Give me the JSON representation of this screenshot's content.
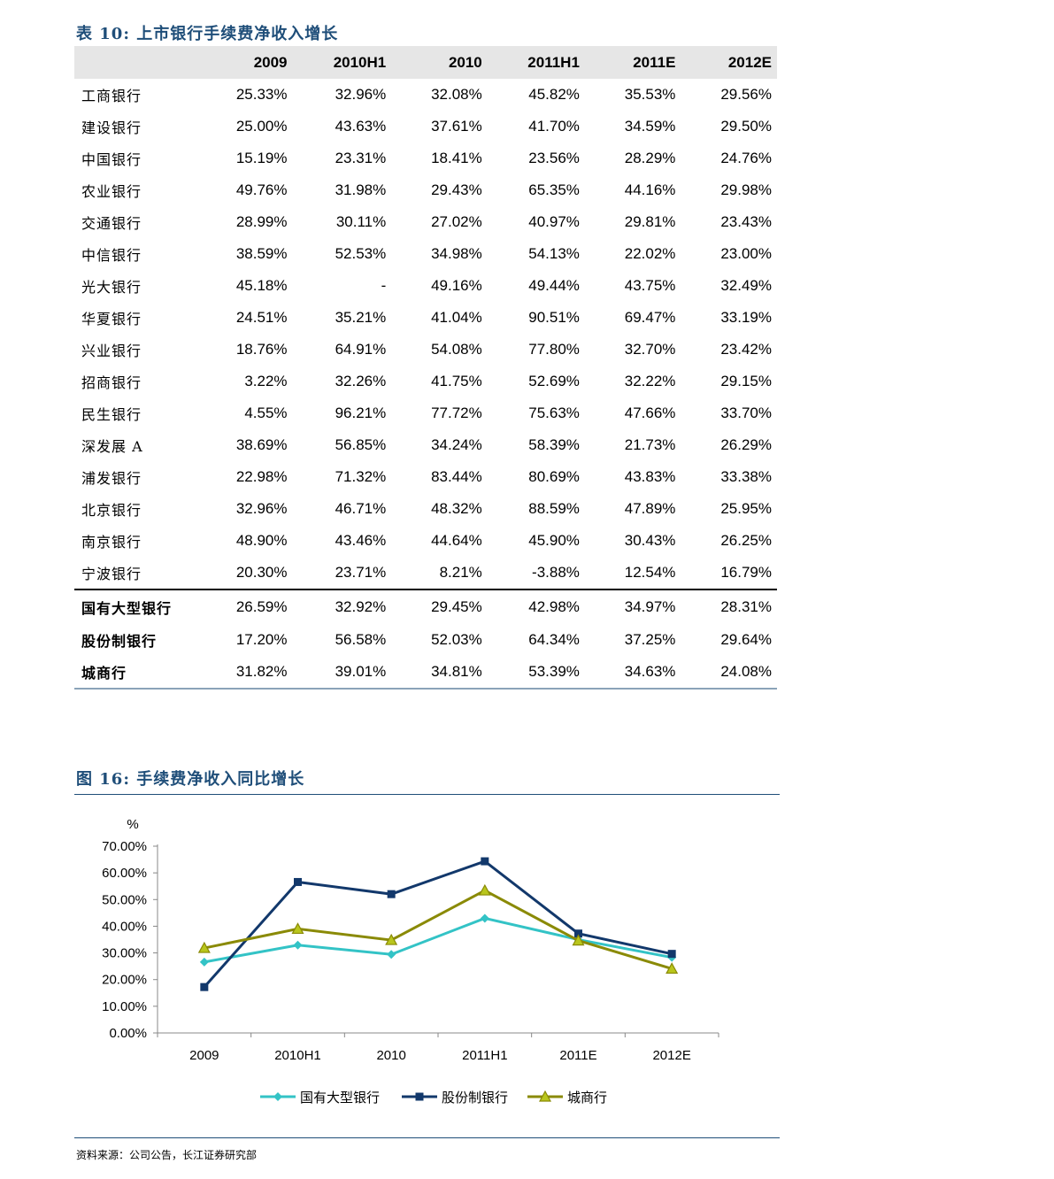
{
  "table_caption": "表 10: 上市银行手续费净收入增长",
  "table": {
    "columns": [
      "",
      "2009",
      "2010H1",
      "2010",
      "2011H1",
      "2011E",
      "2012E"
    ],
    "rows": [
      {
        "name": "工商银行",
        "values": [
          "25.33%",
          "32.96%",
          "32.08%",
          "45.82%",
          "35.53%",
          "29.56%"
        ]
      },
      {
        "name": "建设银行",
        "values": [
          "25.00%",
          "43.63%",
          "37.61%",
          "41.70%",
          "34.59%",
          "29.50%"
        ]
      },
      {
        "name": "中国银行",
        "values": [
          "15.19%",
          "23.31%",
          "18.41%",
          "23.56%",
          "28.29%",
          "24.76%"
        ]
      },
      {
        "name": "农业银行",
        "values": [
          "49.76%",
          "31.98%",
          "29.43%",
          "65.35%",
          "44.16%",
          "29.98%"
        ]
      },
      {
        "name": "交通银行",
        "values": [
          "28.99%",
          "30.11%",
          "27.02%",
          "40.97%",
          "29.81%",
          "23.43%"
        ]
      },
      {
        "name": "中信银行",
        "values": [
          "38.59%",
          "52.53%",
          "34.98%",
          "54.13%",
          "22.02%",
          "23.00%"
        ]
      },
      {
        "name": "光大银行",
        "values": [
          "45.18%",
          "-",
          "49.16%",
          "49.44%",
          "43.75%",
          "32.49%"
        ]
      },
      {
        "name": "华夏银行",
        "values": [
          "24.51%",
          "35.21%",
          "41.04%",
          "90.51%",
          "69.47%",
          "33.19%"
        ]
      },
      {
        "name": "兴业银行",
        "values": [
          "18.76%",
          "64.91%",
          "54.08%",
          "77.80%",
          "32.70%",
          "23.42%"
        ]
      },
      {
        "name": "招商银行",
        "values": [
          "3.22%",
          "32.26%",
          "41.75%",
          "52.69%",
          "32.22%",
          "29.15%"
        ]
      },
      {
        "name": "民生银行",
        "values": [
          "4.55%",
          "96.21%",
          "77.72%",
          "75.63%",
          "47.66%",
          "33.70%"
        ]
      },
      {
        "name": "深发展 A",
        "values": [
          "38.69%",
          "56.85%",
          "34.24%",
          "58.39%",
          "21.73%",
          "26.29%"
        ]
      },
      {
        "name": "浦发银行",
        "values": [
          "22.98%",
          "71.32%",
          "83.44%",
          "80.69%",
          "43.83%",
          "33.38%"
        ]
      },
      {
        "name": "北京银行",
        "values": [
          "32.96%",
          "46.71%",
          "48.32%",
          "88.59%",
          "47.89%",
          "25.95%"
        ]
      },
      {
        "name": "南京银行",
        "values": [
          "48.90%",
          "43.46%",
          "44.64%",
          "45.90%",
          "30.43%",
          "26.25%"
        ]
      },
      {
        "name": "宁波银行",
        "values": [
          "20.30%",
          "23.71%",
          "8.21%",
          "-3.88%",
          "12.54%",
          "16.79%"
        ]
      }
    ],
    "group_rows": [
      {
        "name": "国有大型银行",
        "values": [
          "26.59%",
          "32.92%",
          "29.45%",
          "42.98%",
          "34.97%",
          "28.31%"
        ]
      },
      {
        "name": "股份制银行",
        "values": [
          "17.20%",
          "56.58%",
          "52.03%",
          "64.34%",
          "37.25%",
          "29.64%"
        ]
      },
      {
        "name": "城商行",
        "values": [
          "31.82%",
          "39.01%",
          "34.81%",
          "53.39%",
          "34.63%",
          "24.08%"
        ]
      }
    ]
  },
  "chart_caption": "图 16: 手续费净收入同比增长",
  "chart_data": {
    "type": "line",
    "unit_label": "%",
    "categories": [
      "2009",
      "2010H1",
      "2010",
      "2011H1",
      "2011E",
      "2012E"
    ],
    "ylim": [
      0,
      70
    ],
    "yticks": [
      "0.00%",
      "10.00%",
      "20.00%",
      "30.00%",
      "40.00%",
      "50.00%",
      "60.00%",
      "70.00%"
    ],
    "series": [
      {
        "name": "国有大型银行",
        "color": "#33c3c6",
        "marker": "diamond",
        "values": [
          26.59,
          32.92,
          29.45,
          42.98,
          34.97,
          28.31
        ]
      },
      {
        "name": "股份制银行",
        "color": "#12386b",
        "marker": "square",
        "values": [
          17.2,
          56.58,
          52.03,
          64.34,
          37.25,
          29.64
        ]
      },
      {
        "name": "城商行",
        "color": "#8a8a06",
        "marker": "triangle",
        "values": [
          31.82,
          39.01,
          34.81,
          53.39,
          34.63,
          24.08
        ]
      }
    ],
    "legend_position": "bottom"
  },
  "source_note": "资料来源：公司公告，长江证券研究部"
}
